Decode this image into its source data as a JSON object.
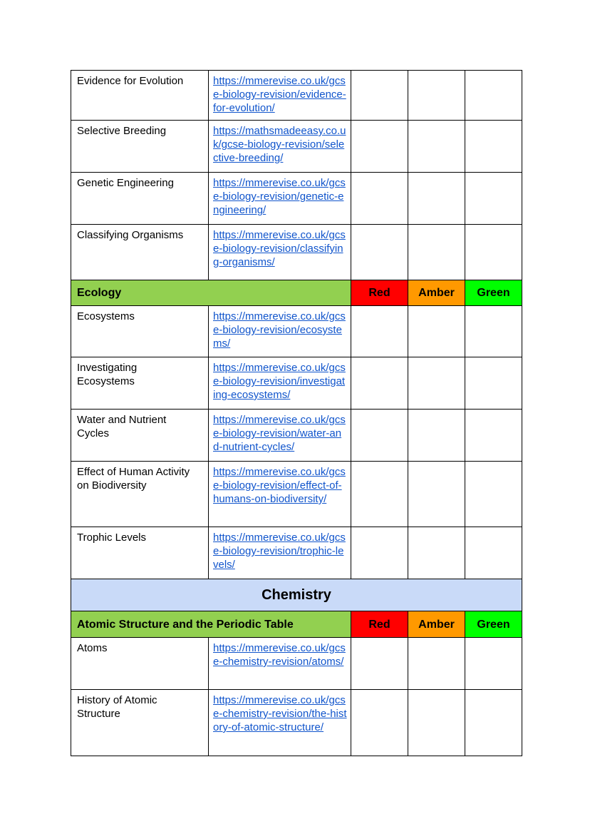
{
  "colors": {
    "page_background": "#ffffff",
    "text": "#000000",
    "border": "#000000",
    "link_blue": "#1155cc",
    "section_green": "#92d050",
    "red": "#ff0000",
    "amber": "#ff9900",
    "green": "#00ff00",
    "subject_blue": "#c9daf8"
  },
  "table": {
    "rag_labels": [
      "Red",
      "Amber",
      "Green"
    ],
    "rows": [
      {
        "type": "topic",
        "topic": "Evidence for Evolution",
        "url": "https://mmerevise.co.uk/gcse-biology-revision/evidence-for-evolution/"
      },
      {
        "type": "topic",
        "topic": "Selective Breeding",
        "url": "https://mathsmadeeasy.co.uk/gcse-biology-revision/selective-breeding/"
      },
      {
        "type": "topic",
        "topic": "Genetic Engineering",
        "url": "https://mmerevise.co.uk/gcse-biology-revision/genetic-engineering/"
      },
      {
        "type": "topic",
        "topic": "Classifying Organisms",
        "url": "https://mmerevise.co.uk/gcse-biology-revision/classifying-organisms/"
      },
      {
        "type": "section",
        "label": "Ecology"
      },
      {
        "type": "topic",
        "topic": "Ecosystems",
        "url": "https://mmerevise.co.uk/gcse-biology-revision/ecosystems/"
      },
      {
        "type": "topic",
        "topic": "Investigating Ecosystems",
        "url": "https://mmerevise.co.uk/gcse-biology-revision/investigating-ecosystems/"
      },
      {
        "type": "topic",
        "topic": "Water and Nutrient Cycles",
        "url": "https://mmerevise.co.uk/gcse-biology-revision/water-and-nutrient-cycles/"
      },
      {
        "type": "topic",
        "topic": "Effect of Human Activity on Biodiversity",
        "url": "https://mmerevise.co.uk/gcse-biology-revision/effect-of-humans-on-biodiversity/"
      },
      {
        "type": "topic",
        "topic": "Trophic Levels",
        "url": "https://mmerevise.co.uk/gcse-biology-revision/trophic-levels/"
      },
      {
        "type": "subject",
        "label": "Chemistry"
      },
      {
        "type": "section",
        "label": "Atomic Structure and the Periodic Table"
      },
      {
        "type": "topic",
        "topic": "Atoms",
        "url": "https://mmerevise.co.uk/gcse-chemistry-revision/atoms/"
      },
      {
        "type": "topic",
        "topic": "History of Atomic Structure",
        "url": "https://mmerevise.co.uk/gcse-chemistry-revision/the-history-of-atomic-structure/"
      }
    ]
  }
}
